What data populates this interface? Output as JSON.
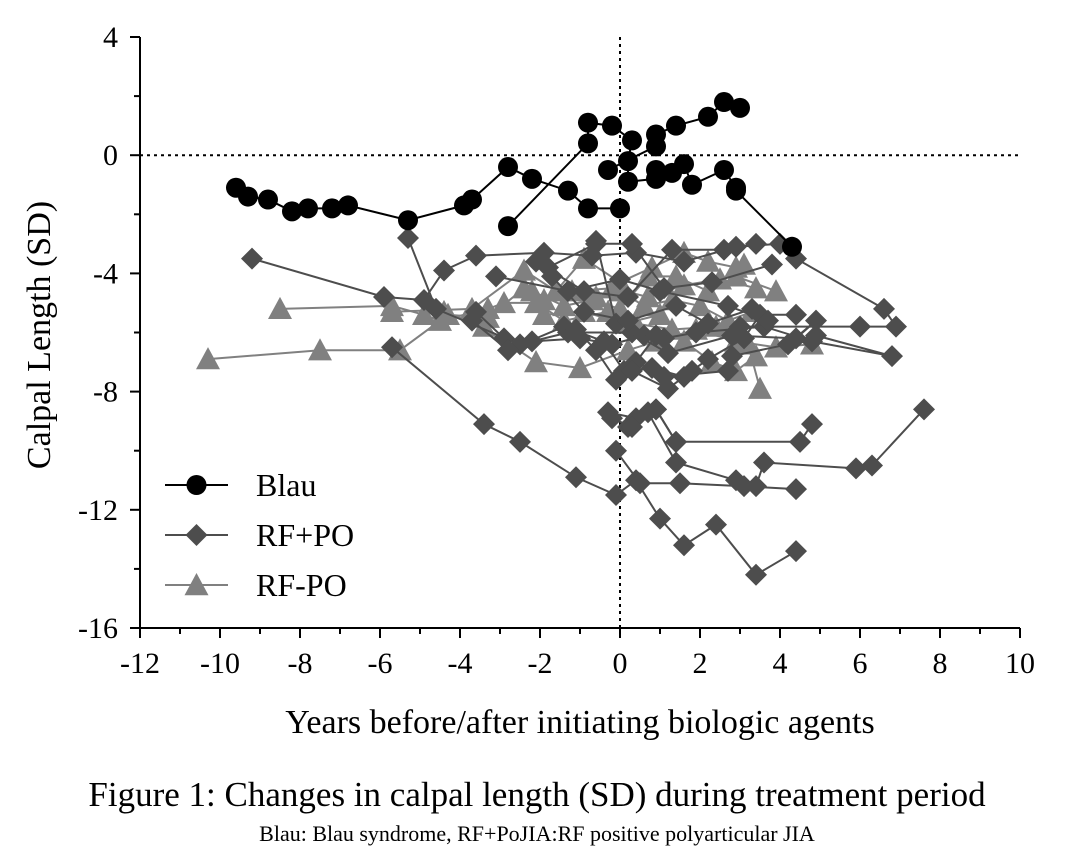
{
  "chart_data": {
    "type": "line",
    "title": "Figure 1: Changes in calpal length (SD) during treatment period",
    "subtitle": "Blau: Blau syndrome, RF+PoJIA:RF positive polyarticular JIA",
    "xlabel": "Years before/after initiating biologic agents",
    "ylabel": "Calpal Length (SD)",
    "xlim": [
      -12,
      10
    ],
    "ylim": [
      -16,
      4
    ],
    "xticks": [
      -12,
      -10,
      -8,
      -6,
      -4,
      -2,
      0,
      2,
      4,
      6,
      8,
      10
    ],
    "yticks": [
      4,
      0,
      -4,
      -8,
      -12,
      -16
    ],
    "xtick_labels": [
      "-12",
      "-10",
      "-8",
      "-6",
      "-4",
      "-2",
      "0",
      "2",
      "4",
      "6",
      "8",
      "10"
    ],
    "ytick_labels": [
      "4",
      "0",
      "-4",
      "-8",
      "-12",
      "-16"
    ],
    "reference_lines": [
      {
        "axis": "x",
        "value": 0,
        "style": "dotted"
      },
      {
        "axis": "y",
        "value": 0,
        "style": "dotted"
      }
    ],
    "legend_position": "bottom-left",
    "series": [
      {
        "name": "Blau",
        "marker": "circle",
        "color": "#000000",
        "lines": [
          [
            [
              -9.6,
              -1.1
            ],
            [
              -9.3,
              -1.4
            ],
            [
              -8.8,
              -1.5
            ],
            [
              -8.2,
              -1.9
            ],
            [
              -7.8,
              -1.8
            ],
            [
              -7.2,
              -1.8
            ],
            [
              -6.8,
              -1.7
            ],
            [
              -5.3,
              -2.2
            ],
            [
              -3.9,
              -1.7
            ],
            [
              -3.7,
              -1.5
            ],
            [
              -2.8,
              -0.4
            ],
            [
              -2.2,
              -0.8
            ],
            [
              -1.3,
              -1.2
            ],
            [
              -0.8,
              -1.8
            ],
            [
              0,
              -1.8
            ]
          ],
          [
            [
              -2.8,
              -2.4
            ],
            [
              -0.8,
              0.4
            ],
            [
              -0.8,
              1.1
            ],
            [
              -0.2,
              1.0
            ],
            [
              0.3,
              0.5
            ],
            [
              0.2,
              -0.2
            ],
            [
              0.2,
              -0.9
            ],
            [
              0.9,
              -0.8
            ],
            [
              0.9,
              -0.5
            ],
            [
              1.3,
              -0.6
            ],
            [
              1.6,
              -0.3
            ],
            [
              1.8,
              -1.0
            ],
            [
              2.6,
              -0.5
            ],
            [
              2.9,
              -1.1
            ],
            [
              2.9,
              -1.2
            ],
            [
              4.3,
              -3.1
            ]
          ],
          [
            [
              -0.3,
              -0.5
            ],
            [
              0.9,
              0.3
            ],
            [
              0.9,
              0.7
            ],
            [
              1.4,
              1.0
            ],
            [
              2.2,
              1.3
            ],
            [
              2.6,
              1.8
            ],
            [
              3.0,
              1.6
            ]
          ]
        ]
      },
      {
        "name": "RF+PO",
        "marker": "diamond",
        "color": "#4d4d4d",
        "lines": [
          [
            [
              -9.2,
              -3.5
            ],
            [
              -5.9,
              -4.8
            ],
            [
              -4.9,
              -4.9
            ],
            [
              -4.4,
              -3.9
            ],
            [
              -3.6,
              -3.4
            ],
            [
              -1.9,
              -3.3
            ],
            [
              -0.7,
              -3.4
            ],
            [
              0.4,
              -3.3
            ],
            [
              1.6,
              -3.6
            ],
            [
              2.9,
              -3.1
            ],
            [
              4.0,
              -3.0
            ],
            [
              4.4,
              -3.5
            ],
            [
              6.6,
              -5.2
            ],
            [
              6.9,
              -5.8
            ],
            [
              6.0,
              -5.8
            ],
            [
              3.0,
              -5.8
            ]
          ],
          [
            [
              -5.3,
              -2.8
            ],
            [
              -4.6,
              -5.2
            ],
            [
              -2.5,
              -6.4
            ],
            [
              -1.3,
              -6.0
            ],
            [
              0.3,
              -6.0
            ],
            [
              1.2,
              -6.7
            ],
            [
              2.8,
              -6.1
            ],
            [
              4.4,
              -6.2
            ],
            [
              4.9,
              -5.6
            ],
            [
              4.2,
              -6.4
            ],
            [
              2.8,
              -6.8
            ]
          ],
          [
            [
              -5.7,
              -6.5
            ],
            [
              -3.4,
              -9.1
            ],
            [
              -2.5,
              -9.7
            ],
            [
              -1.1,
              -10.9
            ],
            [
              -0.1,
              -11.5
            ],
            [
              0.4,
              -11.0
            ],
            [
              1.0,
              -12.3
            ],
            [
              1.6,
              -13.2
            ],
            [
              2.4,
              -12.5
            ],
            [
              3.4,
              -14.2
            ],
            [
              4.4,
              -13.4
            ]
          ],
          [
            [
              -3.6,
              -5.3
            ],
            [
              -2.9,
              -6.2
            ],
            [
              -2.2,
              -6.3
            ],
            [
              -1.0,
              -6.2
            ],
            [
              -0.2,
              -6.4
            ],
            [
              0.6,
              -6.1
            ],
            [
              1.1,
              -6.2
            ],
            [
              1.9,
              -6.0
            ],
            [
              3.6,
              -5.8
            ],
            [
              4.8,
              -6.3
            ],
            [
              6.8,
              -6.8
            ],
            [
              4.9,
              -6.1
            ]
          ],
          [
            [
              -0.3,
              -8.7
            ],
            [
              0.4,
              -8.9
            ],
            [
              0.9,
              -8.6
            ],
            [
              1.4,
              -9.7
            ],
            [
              4.5,
              -9.7
            ],
            [
              4.8,
              -9.1
            ]
          ],
          [
            [
              0.2,
              -9.2
            ],
            [
              0.7,
              -8.7
            ],
            [
              1.4,
              -10.4
            ],
            [
              2.9,
              -11.0
            ],
            [
              3.4,
              -11.2
            ],
            [
              3.6,
              -10.4
            ],
            [
              5.9,
              -10.6
            ],
            [
              6.3,
              -10.5
            ],
            [
              7.6,
              -8.6
            ]
          ],
          [
            [
              -0.1,
              -10.0
            ],
            [
              0.5,
              -11.1
            ],
            [
              1.5,
              -11.1
            ],
            [
              3.1,
              -11.2
            ],
            [
              4.4,
              -11.3
            ]
          ],
          [
            [
              -3.7,
              -5.6
            ],
            [
              -2.8,
              -6.6
            ],
            [
              -1.4,
              -5.8
            ],
            [
              -0.4,
              -6.3
            ],
            [
              0.1,
              -7.3
            ],
            [
              0.8,
              -7.2
            ],
            [
              1.6,
              -7.5
            ],
            [
              2.2,
              -6.9
            ],
            [
              3.1,
              -6.2
            ],
            [
              3.5,
              -5.4
            ],
            [
              4.4,
              -5.4
            ]
          ],
          [
            [
              -3.1,
              -4.1
            ],
            [
              -1.3,
              -4.6
            ],
            [
              0,
              -4.2
            ],
            [
              1.0,
              -4.6
            ],
            [
              2.7,
              -5.1
            ],
            [
              3.7,
              -5.6
            ]
          ],
          [
            [
              -0.6,
              -2.9
            ],
            [
              -0.1,
              -5.7
            ],
            [
              0.9,
              -6.1
            ],
            [
              0.4,
              -7.0
            ],
            [
              1.1,
              -7.5
            ],
            [
              2.7,
              -7.3
            ]
          ],
          [
            [
              -1.8,
              -3.8
            ],
            [
              -0.6,
              -3.0
            ],
            [
              0.3,
              -3.0
            ],
            [
              1.1,
              -4.5
            ],
            [
              2.3,
              -4.3
            ],
            [
              3.8,
              -3.7
            ]
          ],
          [
            [
              -2.1,
              -3.6
            ],
            [
              -0.9,
              -4.6
            ],
            [
              0.2,
              -4.8
            ],
            [
              1.3,
              -3.2
            ],
            [
              2.6,
              -3.2
            ],
            [
              3.4,
              -3.0
            ]
          ],
          [
            [
              -1.1,
              -5.9
            ],
            [
              -0.6,
              -6.6
            ],
            [
              -0.1,
              -7.6
            ],
            [
              0.3,
              -7.3
            ],
            [
              1.2,
              -7.9
            ],
            [
              1.8,
              -7.3
            ]
          ],
          [
            [
              -0.2,
              -8.9
            ],
            [
              0.3,
              -9.2
            ],
            [
              0.9,
              -8.6
            ],
            [
              1.4,
              -9.7
            ]
          ],
          [
            [
              -1.7,
              -4.1
            ],
            [
              -0.9,
              -5.3
            ],
            [
              0.2,
              -5.6
            ],
            [
              1.4,
              -5.1
            ],
            [
              2.2,
              -5.7
            ],
            [
              3.3,
              -5.2
            ]
          ]
        ]
      },
      {
        "name": "RF-PO",
        "marker": "triangle",
        "color": "#808080",
        "lines": [
          [
            [
              -10.3,
              -6.9
            ],
            [
              -7.5,
              -6.6
            ],
            [
              -5.5,
              -6.6
            ],
            [
              -4.3,
              -5.4
            ],
            [
              -3.3,
              -5.5
            ],
            [
              -2.4,
              -4.5
            ],
            [
              -1.9,
              -4.9
            ],
            [
              -1.2,
              -4.6
            ],
            [
              -0.2,
              -4.5
            ],
            [
              0.7,
              -4.8
            ],
            [
              1.6,
              -4.4
            ],
            [
              2.5,
              -4.2
            ],
            [
              3.4,
              -4.5
            ]
          ],
          [
            [
              -8.5,
              -5.2
            ],
            [
              -5.7,
              -5.1
            ],
            [
              -4.9,
              -5.4
            ],
            [
              -4.5,
              -5.6
            ],
            [
              -3.3,
              -5.2
            ],
            [
              -2.9,
              -5.0
            ],
            [
              -2.1,
              -5.0
            ],
            [
              -1.4,
              -5.6
            ],
            [
              -0.3,
              -5.3
            ],
            [
              0.4,
              -5.7
            ],
            [
              1.3,
              -5.9
            ],
            [
              2.4,
              -5.8
            ],
            [
              3.2,
              -6.4
            ],
            [
              3.5,
              -7.9
            ]
          ],
          [
            [
              -5.7,
              -5.3
            ],
            [
              -3.7,
              -5.2
            ],
            [
              -2.4,
              -3.9
            ],
            [
              -1.6,
              -4.6
            ],
            [
              -0.9,
              -3.5
            ],
            [
              0,
              -4.3
            ],
            [
              0.8,
              -3.8
            ],
            [
              1.6,
              -3.3
            ],
            [
              2.2,
              -3.6
            ],
            [
              2.9,
              -3.8
            ],
            [
              3.1,
              -3.7
            ]
          ],
          [
            [
              -4.4,
              -5.3
            ],
            [
              -3.4,
              -5.8
            ],
            [
              -2.1,
              -7.0
            ],
            [
              -1.0,
              -7.2
            ],
            [
              0.2,
              -6.6
            ],
            [
              0.9,
              -6.3
            ],
            [
              1.9,
              -5.9
            ],
            [
              2.9,
              -6.3
            ],
            [
              3.9,
              -6.5
            ],
            [
              4.8,
              -6.4
            ]
          ],
          [
            [
              -2.2,
              -4.6
            ],
            [
              -1.4,
              -5.1
            ],
            [
              -0.7,
              -4.9
            ],
            [
              0,
              -5.2
            ],
            [
              0.7,
              -4.1
            ],
            [
              1.4,
              -4.1
            ],
            [
              2.2,
              -4.6
            ],
            [
              2.9,
              -4.1
            ],
            [
              3.9,
              -4.6
            ]
          ],
          [
            [
              -1.9,
              -5.4
            ],
            [
              -0.9,
              -5.3
            ],
            [
              0.1,
              -5.7
            ],
            [
              1.0,
              -5.4
            ],
            [
              1.6,
              -6.3
            ],
            [
              2.3,
              -7.0
            ],
            [
              2.9,
              -7.3
            ],
            [
              3.4,
              -6.8
            ]
          ],
          [
            [
              -0.6,
              -4.8
            ],
            [
              0,
              -4.6
            ],
            [
              0.6,
              -5.1
            ],
            [
              1.3,
              -4.9
            ],
            [
              2.0,
              -5.1
            ],
            [
              2.7,
              -5.6
            ],
            [
              3.3,
              -5.3
            ]
          ]
        ]
      }
    ]
  }
}
